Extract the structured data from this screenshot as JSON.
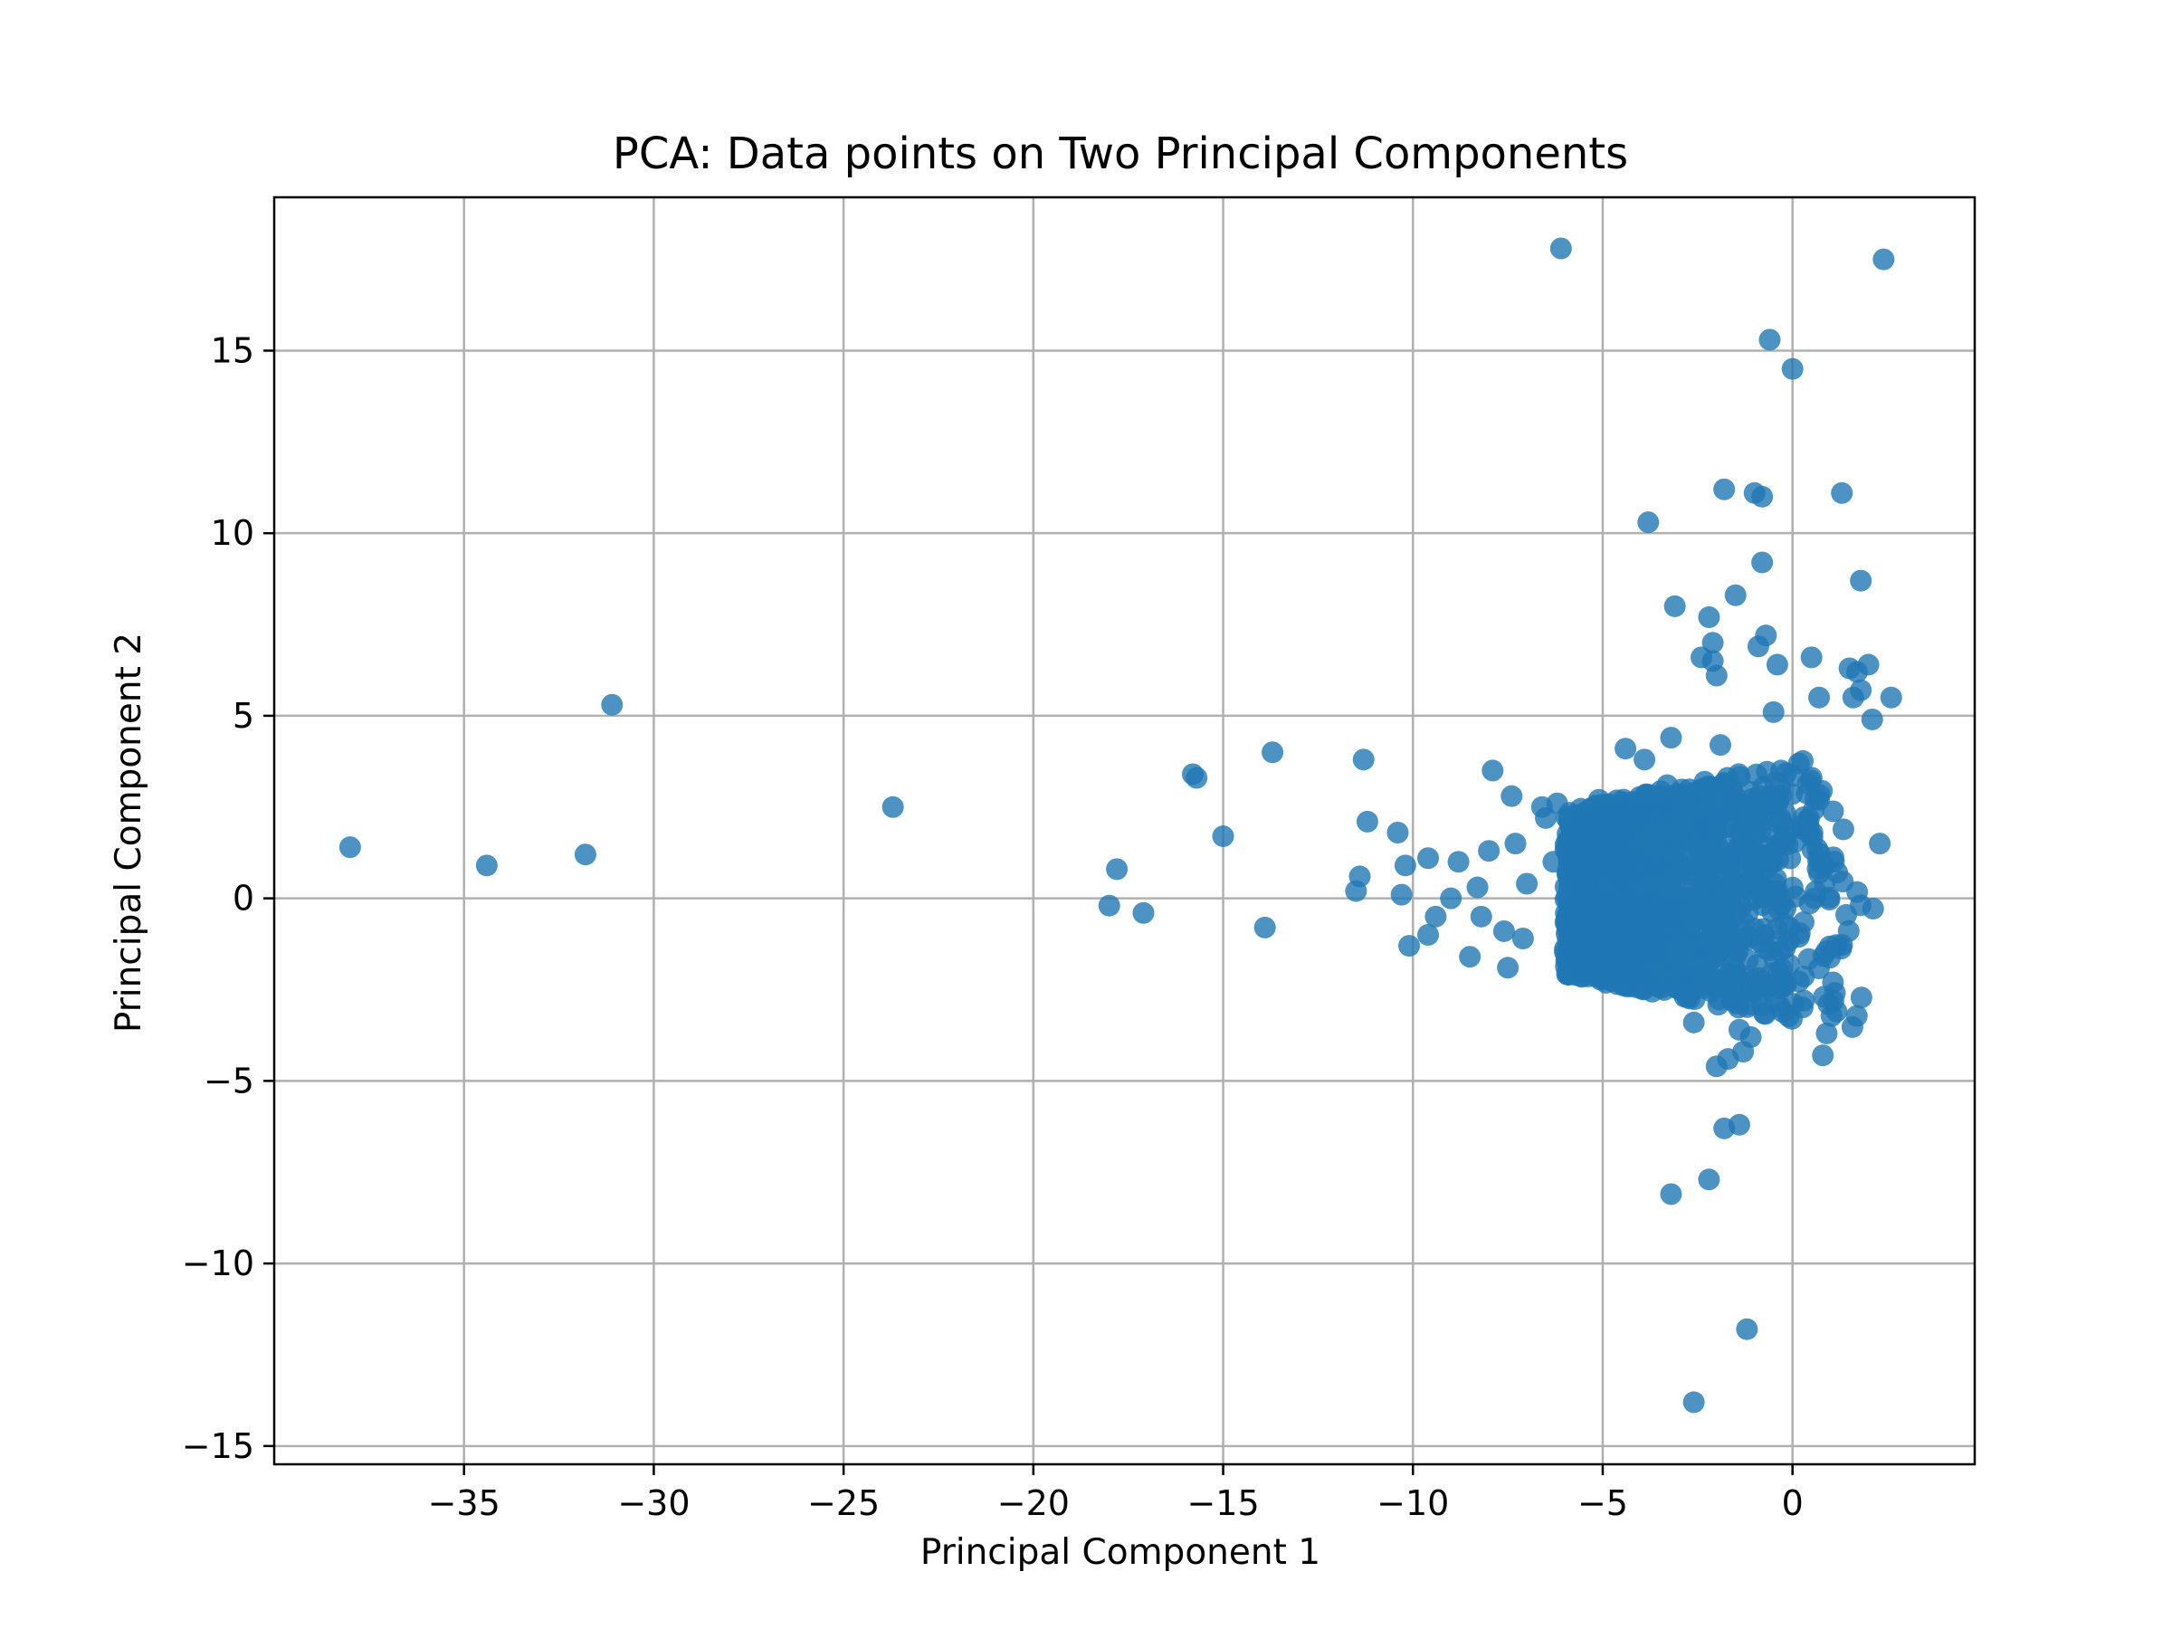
{
  "chart_data": {
    "type": "scatter",
    "title": "PCA: Data points on Two Principal Components",
    "xlabel": "Principal Component 1",
    "ylabel": "Principal Component 2",
    "xlim": [
      -40,
      4.8
    ],
    "ylim": [
      -15.5,
      19.2
    ],
    "xticks": [
      -35,
      -30,
      -25,
      -20,
      -15,
      -10,
      -5,
      0
    ],
    "yticks": [
      -15,
      -10,
      -5,
      0,
      5,
      10,
      15
    ],
    "xtick_labels": [
      "−35",
      "−30",
      "−25",
      "−20",
      "−15",
      "−10",
      "−5",
      "0"
    ],
    "ytick_labels": [
      "−15",
      "−10",
      "−5",
      "0",
      "5",
      "10",
      "15"
    ],
    "grid": true,
    "marker_color": "#1f77b4",
    "marker_alpha": 0.8,
    "series": [
      {
        "points": [
          [
            -38.0,
            1.4
          ],
          [
            -34.4,
            0.9
          ],
          [
            -31.8,
            1.2
          ],
          [
            -31.1,
            5.3
          ],
          [
            -23.7,
            2.5
          ],
          [
            -18.0,
            -0.2
          ],
          [
            -17.8,
            0.8
          ],
          [
            -17.1,
            -0.4
          ],
          [
            -15.8,
            3.4
          ],
          [
            -15.7,
            3.3
          ],
          [
            -15.0,
            1.7
          ],
          [
            -13.9,
            -0.8
          ],
          [
            -13.7,
            4.0
          ],
          [
            -11.5,
            0.2
          ],
          [
            -11.4,
            0.6
          ],
          [
            -11.3,
            3.8
          ],
          [
            -11.2,
            2.1
          ],
          [
            -10.4,
            1.8
          ],
          [
            -10.3,
            0.1
          ],
          [
            -10.2,
            0.9
          ],
          [
            -10.1,
            -1.3
          ],
          [
            -9.6,
            1.1
          ],
          [
            -9.6,
            -1.0
          ],
          [
            -9.4,
            -0.5
          ],
          [
            -9.0,
            0.0
          ],
          [
            -8.8,
            1.0
          ],
          [
            -8.5,
            -1.6
          ],
          [
            -8.3,
            0.3
          ],
          [
            -8.2,
            -0.5
          ],
          [
            -8.0,
            1.3
          ],
          [
            -7.9,
            3.5
          ],
          [
            -7.6,
            -0.9
          ],
          [
            -7.5,
            -1.9
          ],
          [
            -7.4,
            2.8
          ],
          [
            -7.3,
            1.5
          ],
          [
            -7.1,
            -1.1
          ],
          [
            -7.0,
            0.4
          ],
          [
            -6.6,
            2.5
          ],
          [
            -6.5,
            2.2
          ],
          [
            -6.3,
            1.0
          ],
          [
            -6.2,
            2.6
          ],
          [
            -6.1,
            17.8
          ],
          [
            -5.9,
            -1.5
          ],
          [
            -5.8,
            0.3
          ],
          [
            -5.5,
            -0.6
          ],
          [
            -5.3,
            1.8
          ],
          [
            -5.1,
            2.7
          ],
          [
            -4.9,
            0.5
          ],
          [
            -4.7,
            -1.2
          ],
          [
            -4.5,
            1.6
          ],
          [
            -4.4,
            4.1
          ],
          [
            -4.2,
            -0.4
          ],
          [
            -4.0,
            2.3
          ],
          [
            -3.9,
            3.8
          ],
          [
            -3.8,
            10.3
          ],
          [
            -3.6,
            -0.9
          ],
          [
            -3.5,
            1.2
          ],
          [
            -3.3,
            3.1
          ],
          [
            -3.2,
            -8.1
          ],
          [
            -3.2,
            4.4
          ],
          [
            -3.1,
            8.0
          ],
          [
            -3.0,
            0.6
          ],
          [
            -2.8,
            -2.6
          ],
          [
            -2.7,
            1.9
          ],
          [
            -2.6,
            -3.4
          ],
          [
            -2.6,
            -13.8
          ],
          [
            -2.4,
            6.6
          ],
          [
            -2.3,
            -1.8
          ],
          [
            -2.2,
            -7.7
          ],
          [
            -2.2,
            7.7
          ],
          [
            -2.1,
            7.0
          ],
          [
            -2.1,
            6.5
          ],
          [
            -2.0,
            6.1
          ],
          [
            -2.0,
            -4.6
          ],
          [
            -1.9,
            4.2
          ],
          [
            -1.8,
            11.2
          ],
          [
            -1.8,
            -6.3
          ],
          [
            -1.7,
            -4.4
          ],
          [
            -1.6,
            3.0
          ],
          [
            -1.5,
            8.3
          ],
          [
            -1.4,
            -6.2
          ],
          [
            -1.4,
            -3.6
          ],
          [
            -1.3,
            -4.2
          ],
          [
            -1.2,
            -11.8
          ],
          [
            -1.1,
            -3.8
          ],
          [
            -1.0,
            11.1
          ],
          [
            -0.9,
            6.9
          ],
          [
            -0.8,
            11.0
          ],
          [
            -0.8,
            9.2
          ],
          [
            -0.7,
            7.2
          ],
          [
            -0.6,
            15.3
          ],
          [
            -0.5,
            5.1
          ],
          [
            -0.4,
            6.4
          ],
          [
            -0.3,
            3.5
          ],
          [
            0.0,
            14.5
          ],
          [
            0.3,
            -2.8
          ],
          [
            0.5,
            6.6
          ],
          [
            0.7,
            5.5
          ],
          [
            0.8,
            -4.3
          ],
          [
            0.9,
            -3.7
          ],
          [
            1.3,
            11.1
          ],
          [
            1.5,
            6.3
          ],
          [
            1.6,
            5.5
          ],
          [
            1.7,
            6.2
          ],
          [
            1.8,
            5.7
          ],
          [
            1.8,
            8.7
          ],
          [
            2.0,
            6.4
          ],
          [
            2.1,
            4.9
          ],
          [
            2.3,
            1.5
          ],
          [
            2.4,
            17.5
          ],
          [
            2.6,
            5.5
          ]
        ],
        "dense_cluster": {
          "x_range": [
            -6.0,
            2.3
          ],
          "y_range": [
            -3.8,
            4.3
          ],
          "center": [
            0.0,
            0.0
          ]
        }
      }
    ]
  }
}
